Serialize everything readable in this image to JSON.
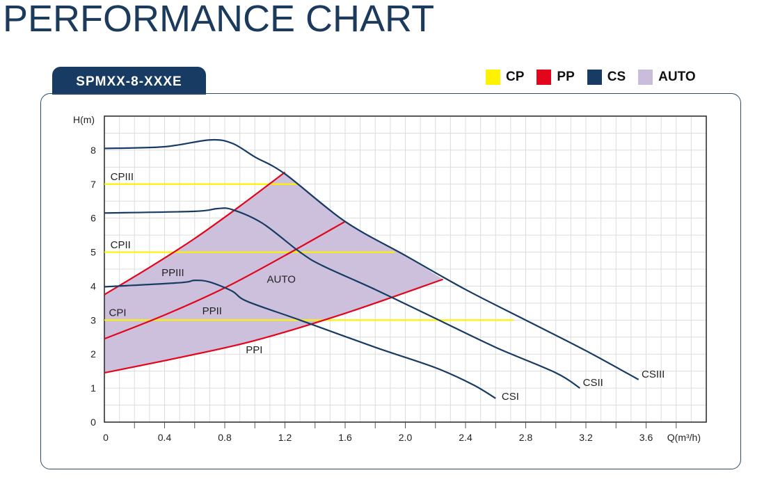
{
  "page_title": "PERFORMANCE CHART",
  "model_tab": "SPMXX-8-XXXE",
  "legend": [
    {
      "label": "CP",
      "color": "#fff200"
    },
    {
      "label": "PP",
      "color": "#e3051b"
    },
    {
      "label": "CS",
      "color": "#173b62"
    },
    {
      "label": "AUTO",
      "color": "#c9bddb"
    }
  ],
  "chart_data": {
    "type": "line",
    "xlabel": "Q(m³/h)",
    "ylabel": "H(m)",
    "xlim": [
      0,
      4.0
    ],
    "ylim": [
      0,
      9
    ],
    "grid": true,
    "xticks": [
      0,
      0.4,
      0.8,
      1.2,
      1.6,
      2.0,
      2.4,
      2.8,
      3.2,
      3.6
    ],
    "xtick_labels": [
      "0",
      "0.4",
      "0.8",
      "1.2",
      "1.6",
      "2.0",
      "2.4",
      "2.8",
      "3.2",
      "3.6"
    ],
    "yticks": [
      0,
      1,
      2,
      3,
      4,
      5,
      6,
      7,
      8
    ],
    "ytick_labels": [
      "0",
      "1",
      "2",
      "3",
      "4",
      "5",
      "6",
      "7",
      "8"
    ],
    "auto_region": {
      "label": "AUTO",
      "label_at": [
        1.08,
        4.2
      ],
      "polygon": [
        [
          0,
          1.45
        ],
        [
          0,
          3.75
        ],
        [
          0.3,
          4.55
        ],
        [
          0.6,
          5.4
        ],
        [
          0.9,
          6.35
        ],
        [
          1.2,
          7.35
        ],
        [
          1.6,
          5.9
        ],
        [
          2.0,
          4.9
        ],
        [
          2.25,
          4.2
        ],
        [
          1.6,
          3.2
        ],
        [
          1.0,
          2.4
        ],
        [
          0.5,
          1.9
        ],
        [
          0,
          1.45
        ]
      ]
    },
    "series": [
      {
        "name": "CSIII",
        "group": "CS",
        "label_at": [
          3.57,
          1.41
        ],
        "points": [
          [
            0,
            8.05
          ],
          [
            0.4,
            8.1
          ],
          [
            0.7,
            8.3
          ],
          [
            0.85,
            8.2
          ],
          [
            1.0,
            7.8
          ],
          [
            1.2,
            7.3
          ],
          [
            1.6,
            5.9
          ],
          [
            2.0,
            4.9
          ],
          [
            2.4,
            3.9
          ],
          [
            2.8,
            3.0
          ],
          [
            3.2,
            2.1
          ],
          [
            3.55,
            1.25
          ]
        ]
      },
      {
        "name": "CSII",
        "group": "CS",
        "label_at": [
          3.18,
          1.17
        ],
        "points": [
          [
            0,
            6.15
          ],
          [
            0.6,
            6.2
          ],
          [
            0.75,
            6.28
          ],
          [
            0.85,
            6.25
          ],
          [
            1.05,
            5.85
          ],
          [
            1.3,
            5.0
          ],
          [
            1.45,
            4.6
          ],
          [
            1.8,
            3.9
          ],
          [
            2.2,
            3.05
          ],
          [
            2.6,
            2.2
          ],
          [
            3.0,
            1.45
          ],
          [
            3.16,
            1.0
          ]
        ]
      },
      {
        "name": "CSI",
        "group": "CS",
        "label_at": [
          2.64,
          0.76
        ],
        "points": [
          [
            0,
            3.98
          ],
          [
            0.5,
            4.1
          ],
          [
            0.6,
            4.17
          ],
          [
            0.7,
            4.12
          ],
          [
            0.85,
            3.85
          ],
          [
            0.95,
            3.55
          ],
          [
            1.3,
            3.0
          ],
          [
            1.8,
            2.2
          ],
          [
            2.2,
            1.6
          ],
          [
            2.45,
            1.1
          ],
          [
            2.6,
            0.7
          ]
        ]
      },
      {
        "name": "PPIII",
        "group": "PP",
        "label_at": [
          0.38,
          4.4
        ],
        "points": [
          [
            0,
            3.75
          ],
          [
            0.3,
            4.55
          ],
          [
            0.6,
            5.4
          ],
          [
            0.9,
            6.35
          ],
          [
            1.2,
            7.35
          ]
        ]
      },
      {
        "name": "PPII",
        "group": "PP",
        "label_at": [
          0.65,
          3.27
        ],
        "points": [
          [
            0,
            2.45
          ],
          [
            0.4,
            3.15
          ],
          [
            0.8,
            3.95
          ],
          [
            1.2,
            4.9
          ],
          [
            1.6,
            5.9
          ]
        ]
      },
      {
        "name": "PPI",
        "group": "PP",
        "label_at": [
          0.94,
          2.13
        ],
        "points": [
          [
            0,
            1.45
          ],
          [
            0.5,
            1.9
          ],
          [
            1.0,
            2.4
          ],
          [
            1.6,
            3.2
          ],
          [
            2.25,
            4.2
          ]
        ]
      },
      {
        "name": "CPIII",
        "group": "CP",
        "label_at": [
          0.04,
          7.22
        ],
        "points": [
          [
            0,
            7
          ],
          [
            1.29,
            7
          ]
        ]
      },
      {
        "name": "CPII",
        "group": "CP",
        "label_at": [
          0.04,
          5.22
        ],
        "points": [
          [
            0,
            5
          ],
          [
            1.93,
            5
          ]
        ]
      },
      {
        "name": "CPI",
        "group": "CP",
        "label_at": [
          0.03,
          3.22
        ],
        "points": [
          [
            0,
            3
          ],
          [
            2.72,
            3
          ]
        ]
      }
    ]
  }
}
